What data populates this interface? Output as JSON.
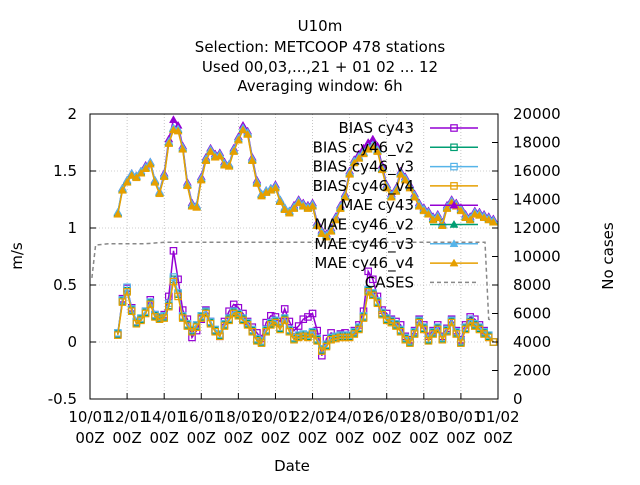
{
  "chart_data": {
    "type": "line",
    "title_lines": [
      "U10m",
      "Selection: METCOOP    478 stations",
      "Used  00,03,...,21  + 01 02 ... 12",
      "Averaging window:  6h"
    ],
    "xlabel": "Date",
    "ylabel": "m/s",
    "y2label": "No cases",
    "ylim": [
      -0.5,
      2
    ],
    "y2lim": [
      0,
      20000
    ],
    "yticks": [
      "-0.5",
      "0",
      "0.5",
      "1",
      "1.5",
      "2"
    ],
    "y2ticks": [
      "0",
      "2000",
      "4000",
      "6000",
      "8000",
      "10000",
      "12000",
      "14000",
      "16000",
      "18000",
      "20000"
    ],
    "xticks": [
      {
        "day": 10,
        "l1": "10/01",
        "l2": "00Z"
      },
      {
        "day": 12,
        "l1": "12/01",
        "l2": "00Z"
      },
      {
        "day": 14,
        "l1": "14/01",
        "l2": "00Z"
      },
      {
        "day": 16,
        "l1": "16/01",
        "l2": "00Z"
      },
      {
        "day": 18,
        "l1": "18/01",
        "l2": "00Z"
      },
      {
        "day": 20,
        "l1": "20/01",
        "l2": "00Z"
      },
      {
        "day": 22,
        "l1": "22/01",
        "l2": "00Z"
      },
      {
        "day": 24,
        "l1": "24/01",
        "l2": "00Z"
      },
      {
        "day": 26,
        "l1": "26/01",
        "l2": "00Z"
      },
      {
        "day": 28,
        "l1": "28/01",
        "l2": "00Z"
      },
      {
        "day": 30,
        "l1": "30/01",
        "l2": "00Z"
      },
      {
        "day": 32,
        "l1": "01/02",
        "l2": "00Z"
      }
    ],
    "xlim": [
      10,
      32
    ],
    "grid": true,
    "legend_position": "top-right",
    "x": [
      11.5,
      11.75,
      12.0,
      12.25,
      12.5,
      12.75,
      13.0,
      13.25,
      13.5,
      13.75,
      14.0,
      14.25,
      14.5,
      14.75,
      15.0,
      15.25,
      15.5,
      15.75,
      16.0,
      16.25,
      16.5,
      16.75,
      17.0,
      17.25,
      17.5,
      17.75,
      18.0,
      18.25,
      18.5,
      18.75,
      19.0,
      19.25,
      19.5,
      19.75,
      20.0,
      20.25,
      20.5,
      20.75,
      21.0,
      21.25,
      21.5,
      21.75,
      22.0,
      22.25,
      22.5,
      22.75,
      23.0,
      23.25,
      23.5,
      23.75,
      24.0,
      24.25,
      24.5,
      24.75,
      25.0,
      25.25,
      25.5,
      25.75,
      26.0,
      26.25,
      26.5,
      26.75,
      27.0,
      27.25,
      27.5,
      27.75,
      28.0,
      28.25,
      28.5,
      28.75,
      29.0,
      29.25,
      29.5,
      29.75,
      30.0,
      30.25,
      30.5,
      30.75,
      31.0,
      31.25,
      31.5,
      31.75
    ],
    "series": [
      {
        "name": "BIAS cy43",
        "color": "#9400d3",
        "marker": "square",
        "axis": "y1",
        "values": [
          0.07,
          0.38,
          0.47,
          0.3,
          0.18,
          0.2,
          0.27,
          0.37,
          0.24,
          0.22,
          0.24,
          0.4,
          0.8,
          0.55,
          0.28,
          0.2,
          0.04,
          0.1,
          0.2,
          0.28,
          0.18,
          0.1,
          0.05,
          0.18,
          0.27,
          0.33,
          0.3,
          0.25,
          0.18,
          0.13,
          0.08,
          0.03,
          0.17,
          0.23,
          0.22,
          0.18,
          0.29,
          0.18,
          0.1,
          0.14,
          0.2,
          0.22,
          0.25,
          0.1,
          -0.12,
          0.03,
          0.08,
          0.05,
          0.07,
          0.08,
          0.05,
          0.1,
          0.15,
          0.27,
          0.62,
          0.55,
          0.4,
          0.28,
          0.25,
          0.2,
          0.18,
          0.15,
          0.05,
          0.02,
          0.1,
          0.2,
          0.15,
          0.05,
          0.1,
          0.15,
          0.05,
          0.12,
          0.2,
          0.1,
          0.02,
          0.15,
          0.22,
          0.2,
          0.15,
          0.1,
          0.05,
          0.0
        ]
      },
      {
        "name": "BIAS cy46_v2",
        "color": "#009e73",
        "marker": "square",
        "axis": "y1",
        "values": [
          0.07,
          0.36,
          0.45,
          0.28,
          0.17,
          0.2,
          0.26,
          0.34,
          0.23,
          0.21,
          0.22,
          0.32,
          0.55,
          0.42,
          0.22,
          0.15,
          0.1,
          0.14,
          0.22,
          0.26,
          0.17,
          0.1,
          0.06,
          0.15,
          0.2,
          0.26,
          0.24,
          0.2,
          0.16,
          0.1,
          0.02,
          0.0,
          0.1,
          0.16,
          0.18,
          0.12,
          0.2,
          0.1,
          0.03,
          0.05,
          0.06,
          0.05,
          0.08,
          0.02,
          -0.07,
          -0.03,
          0.03,
          0.04,
          0.05,
          0.05,
          0.05,
          0.08,
          0.12,
          0.22,
          0.45,
          0.42,
          0.35,
          0.25,
          0.2,
          0.18,
          0.15,
          0.1,
          0.03,
          0.0,
          0.08,
          0.18,
          0.12,
          0.02,
          0.08,
          0.12,
          0.03,
          0.1,
          0.18,
          0.08,
          0.0,
          0.12,
          0.18,
          0.15,
          0.12,
          0.08,
          0.05,
          0.0
        ]
      },
      {
        "name": "BIAS cy46_v3",
        "color": "#56b4e9",
        "marker": "square",
        "axis": "y1",
        "values": [
          0.08,
          0.37,
          0.48,
          0.29,
          0.18,
          0.21,
          0.27,
          0.35,
          0.24,
          0.22,
          0.23,
          0.34,
          0.57,
          0.43,
          0.23,
          0.16,
          0.11,
          0.15,
          0.23,
          0.27,
          0.18,
          0.11,
          0.07,
          0.16,
          0.21,
          0.27,
          0.25,
          0.21,
          0.17,
          0.11,
          0.03,
          0.01,
          0.11,
          0.17,
          0.19,
          0.13,
          0.21,
          0.11,
          0.04,
          0.06,
          0.07,
          0.06,
          0.09,
          0.03,
          -0.06,
          -0.02,
          0.04,
          0.05,
          0.06,
          0.06,
          0.06,
          0.09,
          0.13,
          0.23,
          0.46,
          0.43,
          0.36,
          0.26,
          0.21,
          0.19,
          0.16,
          0.11,
          0.04,
          0.01,
          0.09,
          0.19,
          0.13,
          0.03,
          0.09,
          0.13,
          0.04,
          0.11,
          0.19,
          0.09,
          0.01,
          0.13,
          0.2,
          0.16,
          0.13,
          0.09,
          0.06,
          0.0
        ]
      },
      {
        "name": "BIAS cy46_v4",
        "color": "#e69f00",
        "marker": "square",
        "axis": "y1",
        "values": [
          0.06,
          0.35,
          0.44,
          0.27,
          0.16,
          0.19,
          0.25,
          0.33,
          0.22,
          0.2,
          0.21,
          0.31,
          0.53,
          0.4,
          0.21,
          0.14,
          0.09,
          0.13,
          0.21,
          0.25,
          0.16,
          0.09,
          0.05,
          0.14,
          0.19,
          0.25,
          0.23,
          0.19,
          0.15,
          0.09,
          0.01,
          -0.01,
          0.09,
          0.15,
          0.17,
          0.11,
          0.19,
          0.09,
          0.02,
          0.04,
          0.05,
          0.04,
          0.07,
          0.01,
          -0.08,
          -0.04,
          0.02,
          0.03,
          0.04,
          0.04,
          0.04,
          0.07,
          0.11,
          0.21,
          0.44,
          0.41,
          0.34,
          0.24,
          0.19,
          0.17,
          0.14,
          0.09,
          0.02,
          -0.01,
          0.07,
          0.17,
          0.11,
          0.01,
          0.07,
          0.11,
          0.02,
          0.09,
          0.17,
          0.07,
          -0.01,
          0.11,
          0.17,
          0.14,
          0.11,
          0.07,
          0.04,
          0.0
        ]
      },
      {
        "name": "MAE cy43",
        "color": "#9400d3",
        "marker": "triangle",
        "axis": "y1",
        "values": [
          1.13,
          1.35,
          1.42,
          1.48,
          1.46,
          1.5,
          1.55,
          1.58,
          1.42,
          1.32,
          1.48,
          1.78,
          1.95,
          1.9,
          1.72,
          1.4,
          1.22,
          1.2,
          1.45,
          1.62,
          1.7,
          1.65,
          1.66,
          1.58,
          1.56,
          1.7,
          1.8,
          1.9,
          1.85,
          1.62,
          1.42,
          1.3,
          1.33,
          1.35,
          1.38,
          1.25,
          1.18,
          1.15,
          1.2,
          1.25,
          1.22,
          1.2,
          1.22,
          1.05,
          0.98,
          0.95,
          1.0,
          1.1,
          1.2,
          1.3,
          1.5,
          1.6,
          1.65,
          1.7,
          1.75,
          1.78,
          1.72,
          1.55,
          1.38,
          1.3,
          1.35,
          1.5,
          1.45,
          1.38,
          1.3,
          1.22,
          1.18,
          1.15,
          1.1,
          1.12,
          1.05,
          1.2,
          1.25,
          1.22,
          1.18,
          1.12,
          1.1,
          1.15,
          1.14,
          1.12,
          1.1,
          1.08
        ]
      },
      {
        "name": "MAE cy46_v2",
        "color": "#009e73",
        "marker": "triangle",
        "axis": "y1",
        "values": [
          1.13,
          1.34,
          1.41,
          1.47,
          1.45,
          1.49,
          1.53,
          1.57,
          1.41,
          1.31,
          1.46,
          1.75,
          1.87,
          1.86,
          1.7,
          1.38,
          1.2,
          1.19,
          1.43,
          1.6,
          1.68,
          1.63,
          1.64,
          1.56,
          1.55,
          1.68,
          1.78,
          1.87,
          1.83,
          1.6,
          1.4,
          1.29,
          1.32,
          1.34,
          1.36,
          1.24,
          1.17,
          1.14,
          1.18,
          1.23,
          1.2,
          1.18,
          1.2,
          1.03,
          0.96,
          0.93,
          0.98,
          1.08,
          1.18,
          1.28,
          1.48,
          1.58,
          1.62,
          1.66,
          1.7,
          1.72,
          1.68,
          1.52,
          1.36,
          1.28,
          1.33,
          1.48,
          1.43,
          1.36,
          1.28,
          1.2,
          1.16,
          1.13,
          1.08,
          1.1,
          1.03,
          1.18,
          1.23,
          1.2,
          1.16,
          1.1,
          1.08,
          1.13,
          1.12,
          1.1,
          1.08,
          1.06
        ]
      },
      {
        "name": "MAE cy46_v3",
        "color": "#56b4e9",
        "marker": "triangle",
        "axis": "y1",
        "values": [
          1.14,
          1.35,
          1.42,
          1.48,
          1.46,
          1.5,
          1.54,
          1.58,
          1.42,
          1.32,
          1.47,
          1.76,
          1.88,
          1.87,
          1.71,
          1.39,
          1.21,
          1.2,
          1.44,
          1.61,
          1.69,
          1.64,
          1.65,
          1.57,
          1.56,
          1.69,
          1.79,
          1.88,
          1.84,
          1.61,
          1.41,
          1.3,
          1.33,
          1.35,
          1.37,
          1.25,
          1.18,
          1.15,
          1.19,
          1.24,
          1.21,
          1.19,
          1.21,
          1.04,
          0.97,
          0.94,
          0.99,
          1.09,
          1.19,
          1.29,
          1.49,
          1.59,
          1.63,
          1.67,
          1.71,
          1.73,
          1.69,
          1.53,
          1.37,
          1.29,
          1.34,
          1.49,
          1.44,
          1.37,
          1.29,
          1.21,
          1.17,
          1.14,
          1.09,
          1.11,
          1.04,
          1.19,
          1.24,
          1.21,
          1.17,
          1.11,
          1.09,
          1.14,
          1.13,
          1.11,
          1.09,
          1.07
        ]
      },
      {
        "name": "MAE cy46_v4",
        "color": "#e69f00",
        "marker": "triangle",
        "axis": "y1",
        "values": [
          1.12,
          1.33,
          1.4,
          1.46,
          1.44,
          1.48,
          1.52,
          1.56,
          1.4,
          1.3,
          1.45,
          1.74,
          1.86,
          1.85,
          1.69,
          1.37,
          1.19,
          1.18,
          1.42,
          1.59,
          1.67,
          1.62,
          1.63,
          1.55,
          1.54,
          1.67,
          1.77,
          1.86,
          1.82,
          1.59,
          1.39,
          1.28,
          1.31,
          1.33,
          1.35,
          1.23,
          1.16,
          1.13,
          1.17,
          1.22,
          1.19,
          1.17,
          1.19,
          1.02,
          0.95,
          0.92,
          0.97,
          1.07,
          1.17,
          1.27,
          1.47,
          1.57,
          1.61,
          1.65,
          1.69,
          1.71,
          1.67,
          1.51,
          1.35,
          1.27,
          1.32,
          1.47,
          1.42,
          1.35,
          1.27,
          1.19,
          1.15,
          1.12,
          1.07,
          1.09,
          1.02,
          1.17,
          1.22,
          1.19,
          1.15,
          1.09,
          1.07,
          1.12,
          1.11,
          1.09,
          1.07,
          1.05
        ]
      },
      {
        "name": "CASES",
        "color": "#888888",
        "marker": "none",
        "dashed": true,
        "axis": "y2",
        "x": [
          10.1,
          10.3,
          11.0,
          12.0,
          13.0,
          14.0,
          15.0,
          16.0,
          17.0,
          18.0,
          19.0,
          20.0,
          21.0,
          22.0,
          23.0,
          24.0,
          25.0,
          26.0,
          27.0,
          28.0,
          29.0,
          30.0,
          31.0,
          31.3,
          31.5,
          31.7
        ],
        "values": [
          8500,
          10800,
          10900,
          10900,
          10900,
          11000,
          11000,
          11000,
          11000,
          11000,
          11000,
          11000,
          11000,
          11000,
          11000,
          11000,
          11000,
          11000,
          11000,
          11000,
          11000,
          11000,
          11000,
          11000,
          5600,
          5500
        ]
      }
    ],
    "legend": [
      {
        "label": "BIAS cy43",
        "series": 0
      },
      {
        "label": "BIAS cy46_v2",
        "series": 1
      },
      {
        "label": "BIAS cy46_v3",
        "series": 2
      },
      {
        "label": "BIAS cy46_v4",
        "series": 3
      },
      {
        "label": "MAE cy43",
        "series": 4
      },
      {
        "label": "MAE cy46_v2",
        "series": 5
      },
      {
        "label": "MAE cy46_v3",
        "series": 6
      },
      {
        "label": "MAE cy46_v4",
        "series": 7
      },
      {
        "label": "CASES",
        "series": 8
      }
    ]
  }
}
